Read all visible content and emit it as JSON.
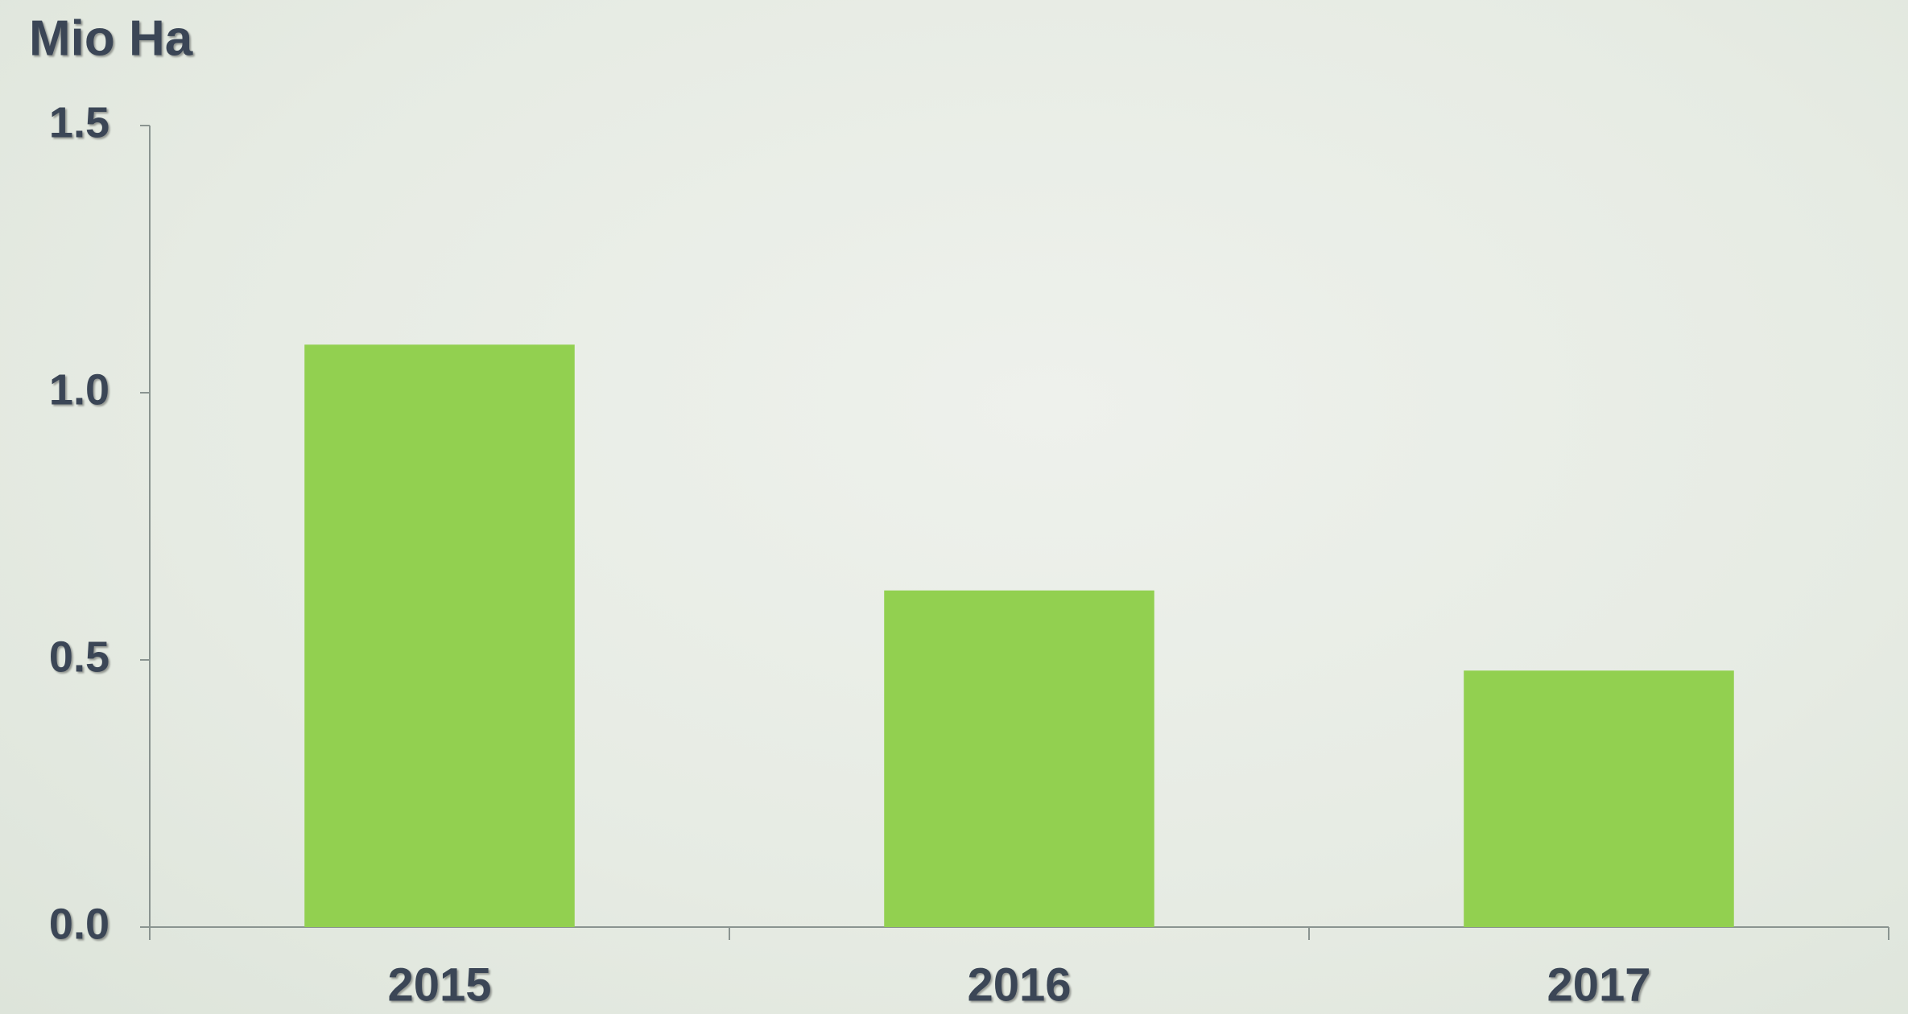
{
  "chart_data": {
    "type": "bar",
    "ylabel": "Mio Ha",
    "categories": [
      "2015",
      "2016",
      "2017"
    ],
    "values": [
      1.09,
      0.63,
      0.48
    ],
    "color": "#92d050",
    "ylim": [
      0,
      1.5
    ],
    "yticks": [
      {
        "value": 0,
        "label": "0.0"
      },
      {
        "value": 0.5,
        "label": "0.5"
      },
      {
        "value": 1,
        "label": "1.0"
      },
      {
        "value": 1.5,
        "label": "1.5"
      }
    ],
    "grid": false
  }
}
